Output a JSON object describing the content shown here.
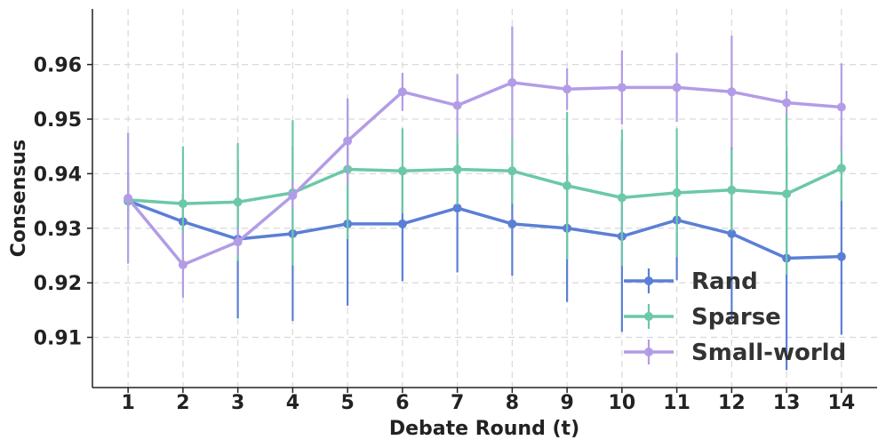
{
  "chart_data": {
    "type": "line",
    "xlabel": "Debate Round (t)",
    "ylabel": "Consensus",
    "x": [
      1,
      2,
      3,
      4,
      5,
      6,
      7,
      8,
      9,
      10,
      11,
      12,
      13,
      14
    ],
    "x_ticks": [
      "1",
      "2",
      "3",
      "4",
      "5",
      "6",
      "7",
      "8",
      "9",
      "10",
      "11",
      "12",
      "13",
      "14"
    ],
    "xlim": [
      0.35,
      14.65
    ],
    "ylim": [
      0.9008,
      0.9702
    ],
    "y_ticks": [
      "0.91",
      "0.92",
      "0.93",
      "0.94",
      "0.95",
      "0.96"
    ],
    "grid": true,
    "grid_style": "dashed",
    "legend_position": "lower-right",
    "series": [
      {
        "name": "Rand",
        "color": "#5b7fd6",
        "values": [
          0.935,
          0.9312,
          0.928,
          0.929,
          0.9308,
          0.9308,
          0.9337,
          0.9308,
          0.93,
          0.9285,
          0.9315,
          0.929,
          0.9245,
          0.9248
        ],
        "errors": [
          0.005,
          0.005,
          0.0145,
          0.016,
          0.015,
          0.0105,
          0.0118,
          0.0095,
          0.0135,
          0.0175,
          0.011,
          0.016,
          0.0205,
          0.0143
        ]
      },
      {
        "name": "Sparse",
        "color": "#6cc8a8",
        "values": [
          0.9352,
          0.9345,
          0.9348,
          0.9365,
          0.9408,
          0.9405,
          0.9408,
          0.9405,
          0.9378,
          0.9356,
          0.9365,
          0.937,
          0.9363,
          0.941
        ],
        "errors": [
          0.0025,
          0.0105,
          0.0108,
          0.0133,
          0.0128,
          0.0078,
          0.0065,
          0.006,
          0.0135,
          0.0125,
          0.0118,
          0.0075,
          0.0148,
          0.006
        ]
      },
      {
        "name": "Small-world",
        "color": "#b39ce6",
        "values": [
          0.9355,
          0.9233,
          0.9275,
          0.936,
          0.946,
          0.955,
          0.9525,
          0.9567,
          0.9555,
          0.9558,
          0.9558,
          0.955,
          0.953,
          0.9522
        ],
        "errors": [
          0.012,
          0.006,
          0.0025,
          0.0025,
          0.0078,
          0.0035,
          0.0057,
          0.0103,
          0.0038,
          0.0068,
          0.0063,
          0.0103,
          0.0022,
          0.008
        ]
      }
    ]
  }
}
